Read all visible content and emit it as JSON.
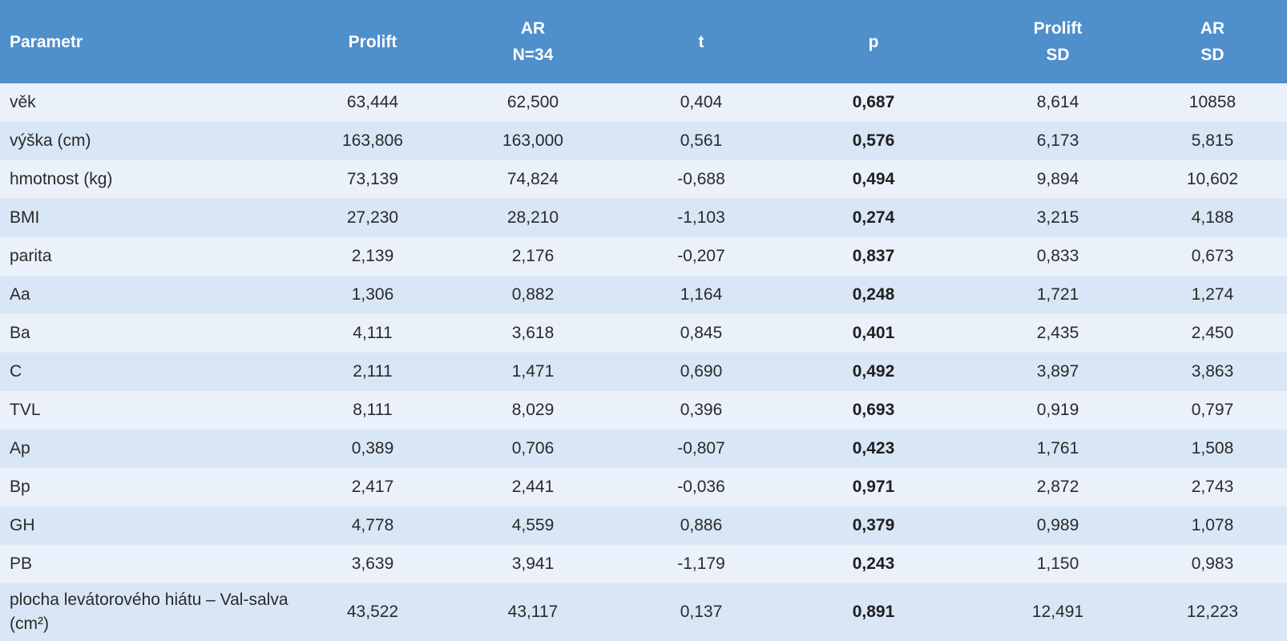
{
  "header": {
    "parametr": "Parametr",
    "prolift": "Prolift",
    "ar_line1": "AR",
    "ar_line2": "N=34",
    "t": "t",
    "p": "p",
    "prolift_sd_line1": "Prolift",
    "prolift_sd_line2": "SD",
    "ar_sd_line1": "AR",
    "ar_sd_line2": "SD"
  },
  "rows": [
    {
      "param": "věk",
      "prolift": "63,444",
      "ar": "62,500",
      "t": "0,404",
      "p": "0,687",
      "prolift_sd": "8,614",
      "ar_sd": "10858"
    },
    {
      "param": "výška (cm)",
      "prolift": "163,806",
      "ar": "163,000",
      "t": "0,561",
      "p": "0,576",
      "prolift_sd": "6,173",
      "ar_sd": "5,815"
    },
    {
      "param": "hmotnost (kg)",
      "prolift": "73,139",
      "ar": "74,824",
      "t": "-0,688",
      "p": "0,494",
      "prolift_sd": "9,894",
      "ar_sd": "10,602"
    },
    {
      "param": "BMI",
      "prolift": "27,230",
      "ar": "28,210",
      "t": "-1,103",
      "p": "0,274",
      "prolift_sd": "3,215",
      "ar_sd": "4,188"
    },
    {
      "param": "parita",
      "prolift": "2,139",
      "ar": "2,176",
      "t": "-0,207",
      "p": "0,837",
      "prolift_sd": "0,833",
      "ar_sd": "0,673"
    },
    {
      "param": "Aa",
      "prolift": "1,306",
      "ar": "0,882",
      "t": "1,164",
      "p": "0,248",
      "prolift_sd": "1,721",
      "ar_sd": "1,274"
    },
    {
      "param": "Ba",
      "prolift": "4,111",
      "ar": "3,618",
      "t": "0,845",
      "p": "0,401",
      "prolift_sd": "2,435",
      "ar_sd": "2,450"
    },
    {
      "param": "C",
      "prolift": "2,111",
      "ar": "1,471",
      "t": "0,690",
      "p": "0,492",
      "prolift_sd": "3,897",
      "ar_sd": "3,863"
    },
    {
      "param": "TVL",
      "prolift": "8,111",
      "ar": "8,029",
      "t": "0,396",
      "p": "0,693",
      "prolift_sd": "0,919",
      "ar_sd": "0,797"
    },
    {
      "param": "Ap",
      "prolift": "0,389",
      "ar": "0,706",
      "t": "-0,807",
      "p": "0,423",
      "prolift_sd": "1,761",
      "ar_sd": "1,508"
    },
    {
      "param": "Bp",
      "prolift": "2,417",
      "ar": "2,441",
      "t": "-0,036",
      "p": "0,971",
      "prolift_sd": "2,872",
      "ar_sd": "2,743"
    },
    {
      "param": "GH",
      "prolift": "4,778",
      "ar": "4,559",
      "t": "0,886",
      "p": "0,379",
      "prolift_sd": "0,989",
      "ar_sd": "1,078"
    },
    {
      "param": "PB",
      "prolift": "3,639",
      "ar": "3,941",
      "t": "-1,179",
      "p": "0,243",
      "prolift_sd": "1,150",
      "ar_sd": "0,983"
    },
    {
      "param": "plocha levátorového hiátu – Val-salva (cm²)",
      "prolift": "43,522",
      "ar": "43,117",
      "t": "0,137",
      "p": "0,891",
      "prolift_sd": "12,491",
      "ar_sd": "12,223"
    }
  ],
  "colors": {
    "header_bg": "#4f8fcb",
    "row_odd": "#eaf1fa",
    "row_even": "#d9e6f5"
  }
}
